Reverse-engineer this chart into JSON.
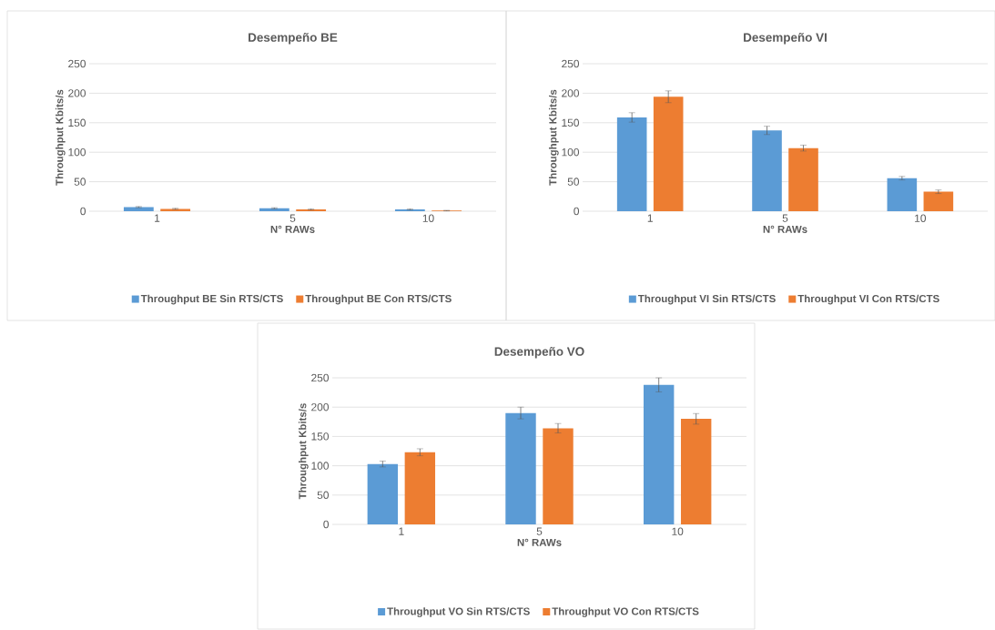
{
  "chart_data": [
    {
      "type": "bar",
      "title": "Desempeño BE",
      "xlabel": "N° RAWs",
      "ylabel": "Throughput Kbits/s",
      "categories": [
        "1",
        "5",
        "10"
      ],
      "ylim": [
        0,
        250
      ],
      "yticks": [
        0,
        50,
        100,
        150,
        200,
        250
      ],
      "grid": "y",
      "legend": "bottom",
      "series": [
        {
          "name": "Throughput BE Sin RTS/CTS",
          "color": "#5b9bd5",
          "values": [
            7,
            5,
            3
          ],
          "errors": [
            1,
            1,
            1
          ]
        },
        {
          "name": "Throughput BE Con RTS/CTS",
          "color": "#ed7d31",
          "values": [
            4,
            3,
            1
          ],
          "errors": [
            1,
            1,
            0.5
          ]
        }
      ]
    },
    {
      "type": "bar",
      "title": "Desempeño VI",
      "xlabel": "N° RAWs",
      "ylabel": "Throughput Kbits/s",
      "categories": [
        "1",
        "5",
        "10"
      ],
      "ylim": [
        0,
        250
      ],
      "yticks": [
        0,
        50,
        100,
        150,
        200,
        250
      ],
      "grid": "y",
      "legend": "bottom",
      "series": [
        {
          "name": "Throughput VI Sin RTS/CTS",
          "color": "#5b9bd5",
          "values": [
            159,
            137,
            56
          ],
          "errors": [
            8,
            7,
            3
          ]
        },
        {
          "name": "Throughput VI Con RTS/CTS",
          "color": "#ed7d31",
          "values": [
            194,
            107,
            33
          ],
          "errors": [
            10,
            5,
            3
          ]
        }
      ]
    },
    {
      "type": "bar",
      "title": "Desempeño VO",
      "xlabel": "N° RAWs",
      "ylabel": "Throughput Kbits/s",
      "categories": [
        "1",
        "5",
        "10"
      ],
      "ylim": [
        0,
        250
      ],
      "yticks": [
        0,
        50,
        100,
        150,
        200,
        250
      ],
      "grid": "y",
      "legend": "bottom",
      "series": [
        {
          "name": "Throughput VO Sin RTS/CTS",
          "color": "#5b9bd5",
          "values": [
            103,
            190,
            238
          ],
          "errors": [
            5,
            10,
            12
          ]
        },
        {
          "name": "Throughput VO Con RTS/CTS",
          "color": "#ed7d31",
          "values": [
            123,
            164,
            180
          ],
          "errors": [
            6,
            8,
            9
          ]
        }
      ]
    }
  ]
}
